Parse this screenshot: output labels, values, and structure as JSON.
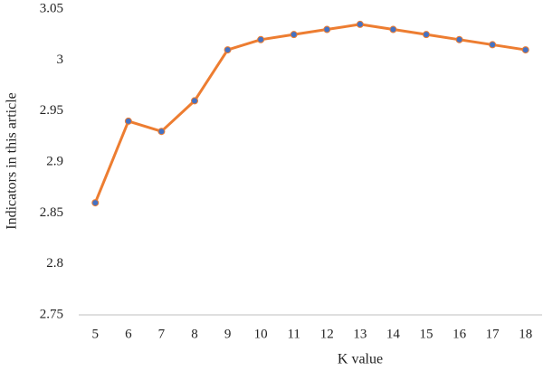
{
  "chart_data": {
    "type": "line",
    "xlabel": "K value",
    "ylabel": "Indicators in this article",
    "categories": [
      "5",
      "6",
      "7",
      "8",
      "9",
      "10",
      "11",
      "12",
      "13",
      "14",
      "15",
      "16",
      "17",
      "18"
    ],
    "series": [
      {
        "color": "#ed7d31",
        "marker_color": "#4472c4",
        "values": [
          2.86,
          2.94,
          2.93,
          2.96,
          3.01,
          3.02,
          3.025,
          3.03,
          3.035,
          3.03,
          3.025,
          3.02,
          3.015,
          3.01
        ]
      }
    ],
    "ylim": [
      2.75,
      3.05
    ],
    "yticks": [
      2.75,
      2.8,
      2.85,
      2.9,
      2.95,
      3,
      3.05
    ],
    "grid": false
  }
}
